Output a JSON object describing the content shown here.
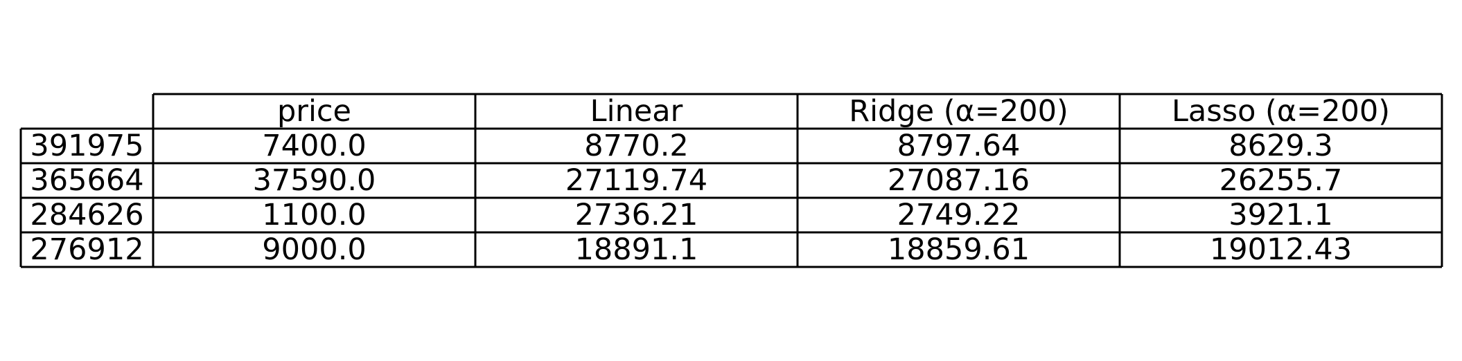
{
  "chart_data": {
    "type": "table",
    "columns": [
      "price",
      "Linear",
      "Ridge (α=200)",
      "Lasso (α=200)"
    ],
    "rows": [
      {
        "index": "391975",
        "values": [
          "7400.0",
          "8770.2",
          "8797.64",
          "8629.3"
        ]
      },
      {
        "index": "365664",
        "values": [
          "37590.0",
          "27119.74",
          "27087.16",
          "26255.7"
        ]
      },
      {
        "index": "284626",
        "values": [
          "1100.0",
          "2736.21",
          "2749.22",
          "3921.1"
        ]
      },
      {
        "index": "276912",
        "values": [
          "9000.0",
          "18891.1",
          "18859.61",
          "19012.43"
        ]
      }
    ]
  }
}
